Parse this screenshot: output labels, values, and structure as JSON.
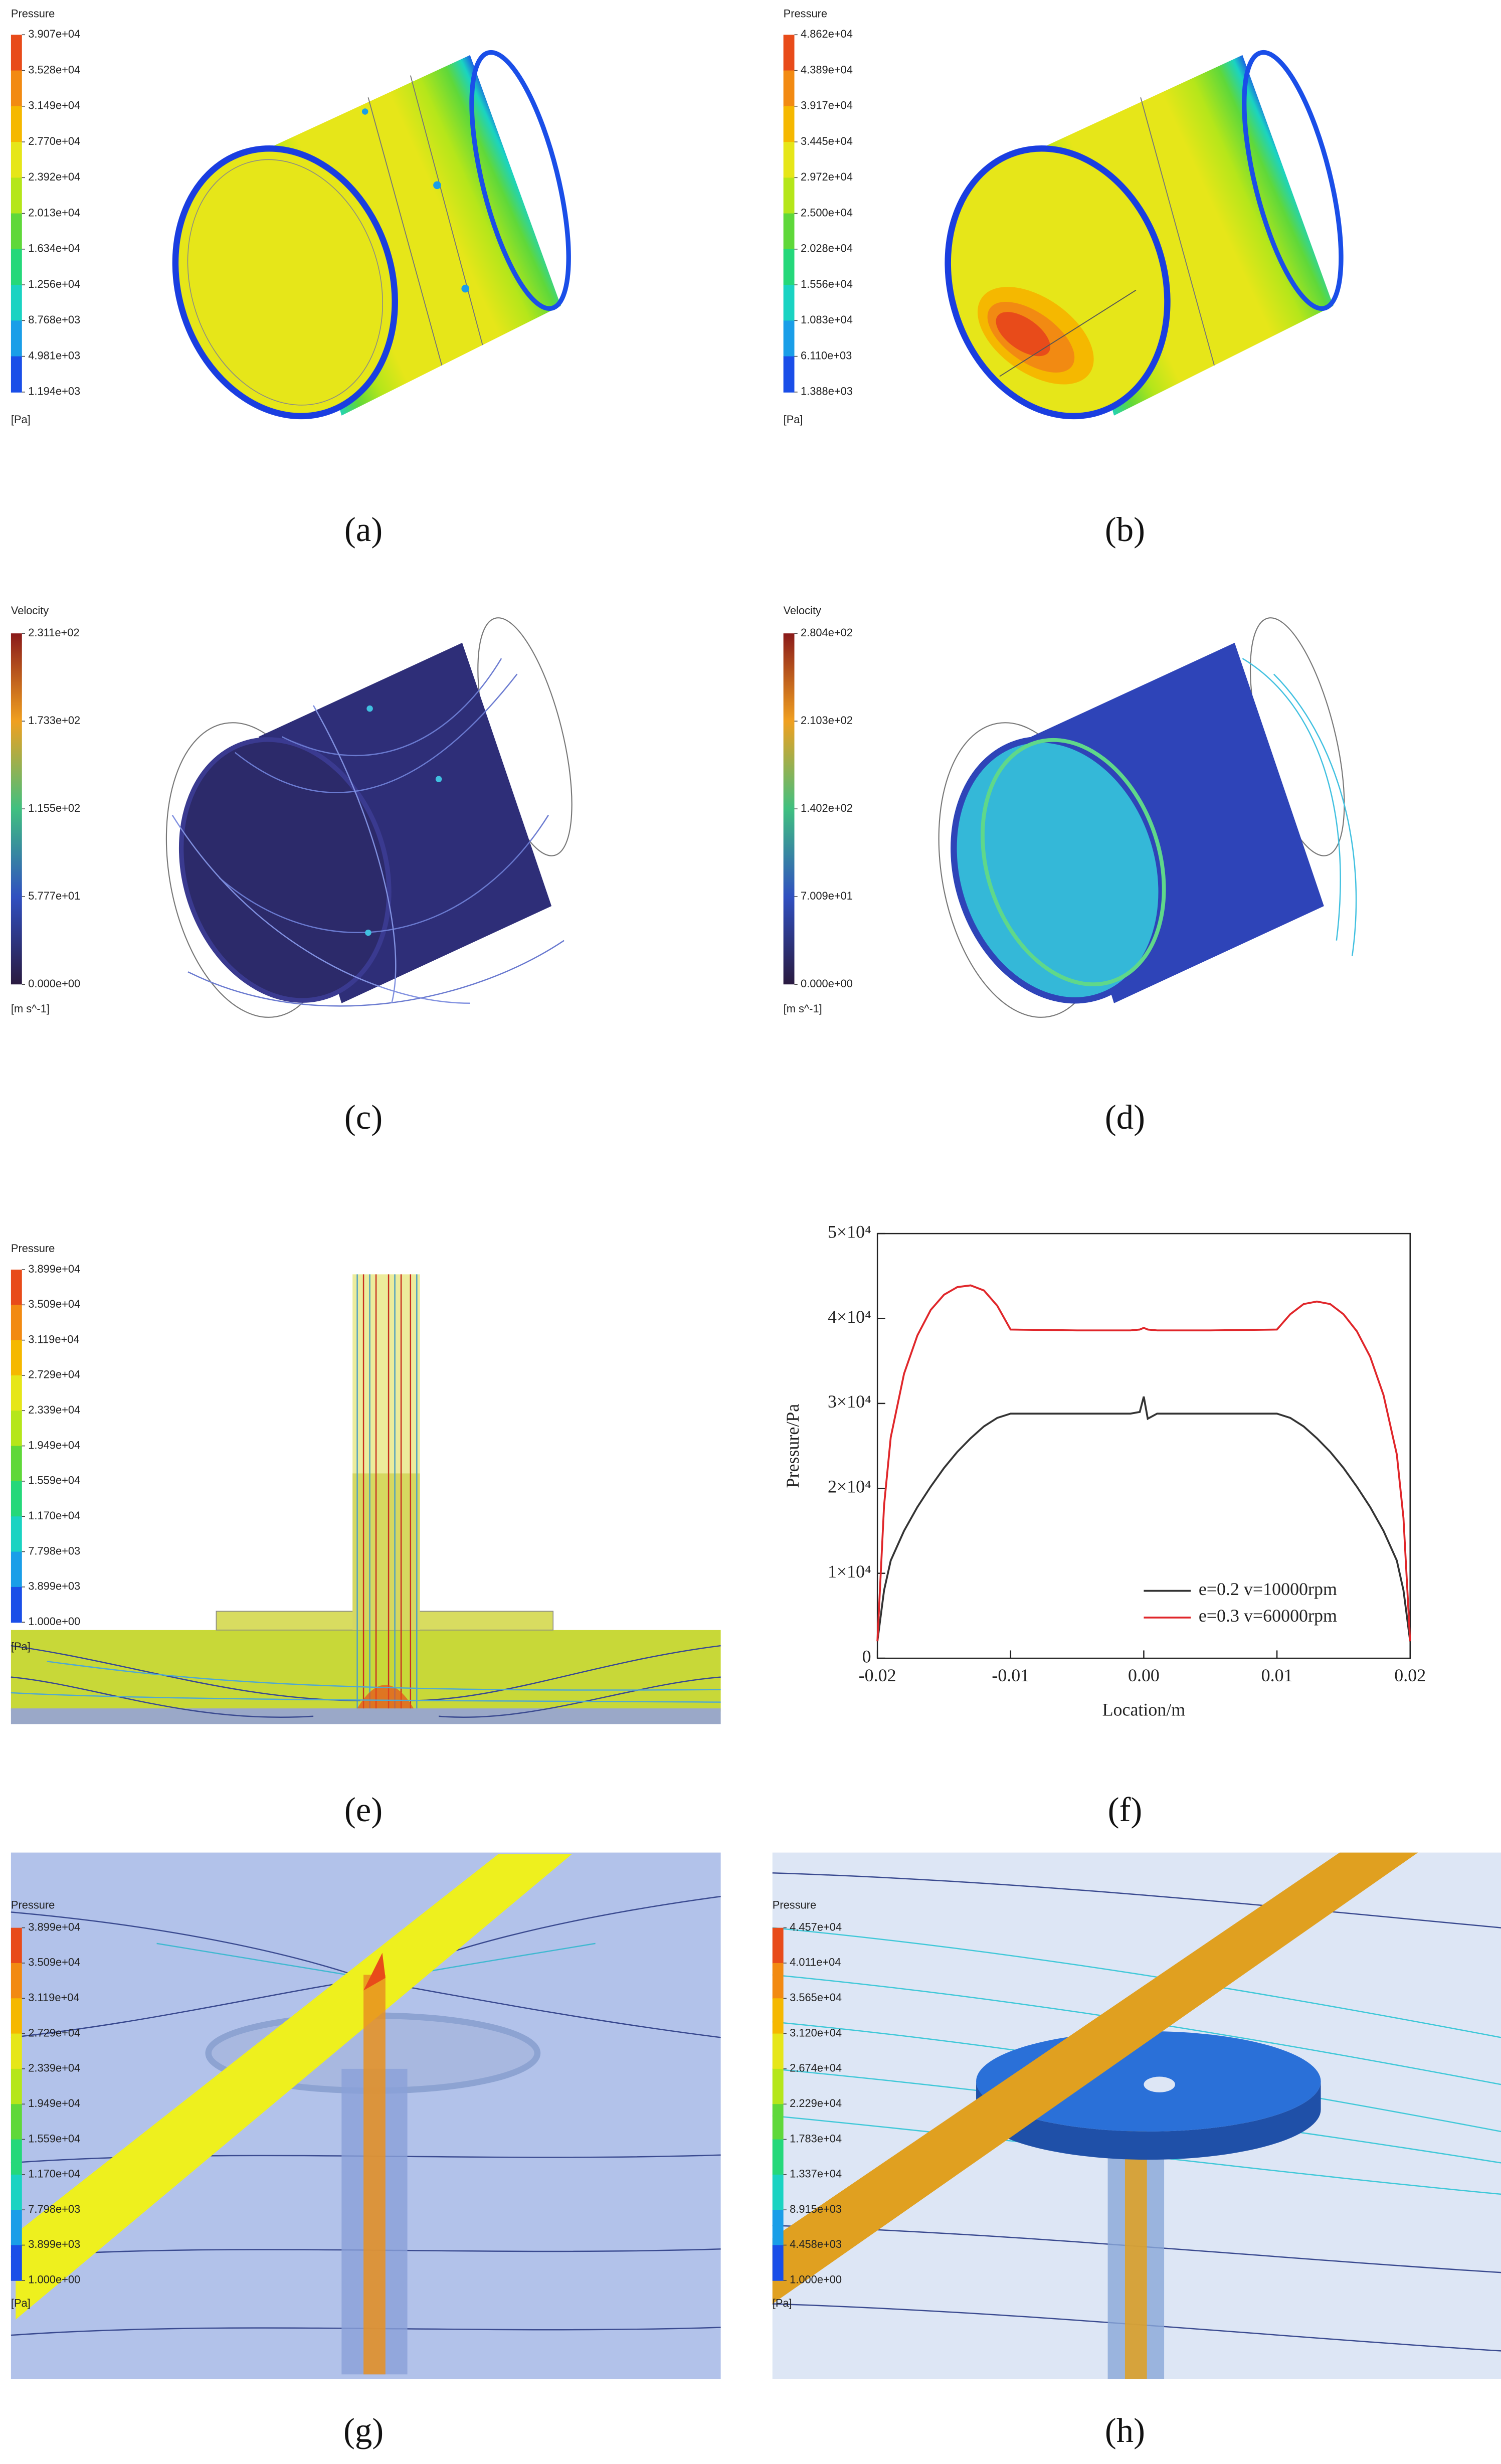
{
  "panels": [
    {
      "caption": "(a)",
      "legend": {
        "title": "Pressure",
        "unit": "[Pa]",
        "ticks": [
          "3.907e+04",
          "3.528e+04",
          "3.149e+04",
          "2.770e+04",
          "2.392e+04",
          "2.013e+04",
          "1.634e+04",
          "1.256e+04",
          "8.768e+03",
          "4.981e+03",
          "1.194e+03"
        ],
        "colors": [
          "#e84b1a",
          "#f28a12",
          "#f5b800",
          "#e6e619",
          "#b5e61a",
          "#5fd83a",
          "#25d87a",
          "#1ad3c2",
          "#1a9ee8",
          "#1a4ee8"
        ]
      }
    },
    {
      "caption": "(b)",
      "legend": {
        "title": "Pressure",
        "unit": "[Pa]",
        "ticks": [
          "4.862e+04",
          "4.389e+04",
          "3.917e+04",
          "3.445e+04",
          "2.972e+04",
          "2.500e+04",
          "2.028e+04",
          "1.556e+04",
          "1.083e+04",
          "6.110e+03",
          "1.388e+03"
        ],
        "colors": [
          "#e84b1a",
          "#f28a12",
          "#f5b800",
          "#e6e619",
          "#b5e61a",
          "#5fd83a",
          "#25d87a",
          "#1ad3c2",
          "#1a9ee8",
          "#1a4ee8"
        ]
      }
    },
    {
      "caption": "(c)",
      "legend": {
        "title": "Velocity",
        "unit": "[m s^-1]",
        "ticks": [
          "2.311e+02",
          "1.733e+02",
          "1.155e+02",
          "5.777e+01",
          "0.000e+00"
        ],
        "gradient": true,
        "colors": [
          "#8a1a1a",
          "#f0a020",
          "#40c080",
          "#3050c0",
          "#2a1a40"
        ]
      }
    },
    {
      "caption": "(d)",
      "legend": {
        "title": "Velocity",
        "unit": "[m s^-1]",
        "ticks": [
          "2.804e+02",
          "2.103e+02",
          "1.402e+02",
          "7.009e+01",
          "0.000e+00"
        ],
        "gradient": true,
        "colors": [
          "#8a1a1a",
          "#f0a020",
          "#40c080",
          "#3050c0",
          "#2a1a40"
        ]
      }
    },
    {
      "caption": "(e)",
      "legend": {
        "title": "Pressure",
        "unit": "[Pa]",
        "ticks": [
          "3.899e+04",
          "3.509e+04",
          "3.119e+04",
          "2.729e+04",
          "2.339e+04",
          "1.949e+04",
          "1.559e+04",
          "1.170e+04",
          "7.798e+03",
          "3.899e+03",
          "1.000e+00"
        ],
        "colors": [
          "#e84b1a",
          "#f28a12",
          "#f5b800",
          "#e6e619",
          "#b5e61a",
          "#5fd83a",
          "#25d87a",
          "#1ad3c2",
          "#1a9ee8",
          "#1a4ee8"
        ]
      }
    },
    {
      "caption": "(g)",
      "legend": {
        "title": "Pressure",
        "unit": "[Pa]",
        "ticks": [
          "3.899e+04",
          "3.509e+04",
          "3.119e+04",
          "2.729e+04",
          "2.339e+04",
          "1.949e+04",
          "1.559e+04",
          "1.170e+04",
          "7.798e+03",
          "3.899e+03",
          "1.000e+00"
        ],
        "colors": [
          "#e84b1a",
          "#f28a12",
          "#f5b800",
          "#e6e619",
          "#b5e61a",
          "#5fd83a",
          "#25d87a",
          "#1ad3c2",
          "#1a9ee8",
          "#1a4ee8"
        ]
      }
    },
    {
      "caption": "(h)",
      "legend": {
        "title": "Pressure",
        "unit": "[Pa]",
        "ticks": [
          "4.457e+04",
          "4.011e+04",
          "3.565e+04",
          "3.120e+04",
          "2.674e+04",
          "2.229e+04",
          "1.783e+04",
          "1.337e+04",
          "8.915e+03",
          "4.458e+03",
          "1.000e+00"
        ],
        "colors": [
          "#e84b1a",
          "#f28a12",
          "#f5b800",
          "#e6e619",
          "#b5e61a",
          "#5fd83a",
          "#25d87a",
          "#1ad3c2",
          "#1a9ee8",
          "#1a4ee8"
        ]
      }
    }
  ],
  "chart_data": {
    "type": "line",
    "caption": "(f)",
    "xlabel": "Location/m",
    "ylabel": "Pressure/Pa",
    "x": [
      -0.02,
      -0.0195,
      -0.019,
      -0.018,
      -0.017,
      -0.016,
      -0.015,
      -0.014,
      -0.013,
      -0.012,
      -0.011,
      -0.01,
      -0.005,
      -0.001,
      -0.0003,
      0,
      0.0003,
      0.001,
      0.005,
      0.01,
      0.011,
      0.012,
      0.013,
      0.014,
      0.015,
      0.016,
      0.017,
      0.018,
      0.019,
      0.0195,
      0.02
    ],
    "series": [
      {
        "name": "e=0.2 v=10000rpm",
        "color": "#333333",
        "values": [
          2000,
          8000,
          11500,
          15000,
          17800,
          20200,
          22400,
          24300,
          25900,
          27300,
          28300,
          28800,
          28800,
          28800,
          29000,
          30800,
          28200,
          28800,
          28800,
          28800,
          28300,
          27300,
          25900,
          24300,
          22400,
          20200,
          17800,
          15000,
          11500,
          8000,
          2000
        ]
      },
      {
        "name": "e=0.3 v=60000rpm",
        "color": "#e0262a",
        "values": [
          2000,
          18000,
          26000,
          33500,
          38000,
          41000,
          42800,
          43700,
          43900,
          43300,
          41500,
          38700,
          38600,
          38600,
          38700,
          38900,
          38700,
          38600,
          38600,
          38700,
          40500,
          41700,
          42000,
          41700,
          40500,
          38500,
          35500,
          31000,
          24000,
          16500,
          2000
        ]
      }
    ],
    "xlim": [
      -0.02,
      0.02
    ],
    "xticks": [
      -0.02,
      -0.01,
      {
        "value": 0,
        "label": "0.00"
      },
      0.01,
      0.02
    ],
    "ylim": [
      0,
      50000
    ],
    "yticks": [
      0,
      {
        "value": 10000,
        "label": "1×10⁴"
      },
      {
        "value": 20000,
        "label": "2×10⁴"
      },
      {
        "value": 30000,
        "label": "3×10⁴"
      },
      {
        "value": 40000,
        "label": "4×10⁴"
      },
      {
        "value": 50000,
        "label": "5×10⁴"
      }
    ],
    "legend": "lower right"
  }
}
